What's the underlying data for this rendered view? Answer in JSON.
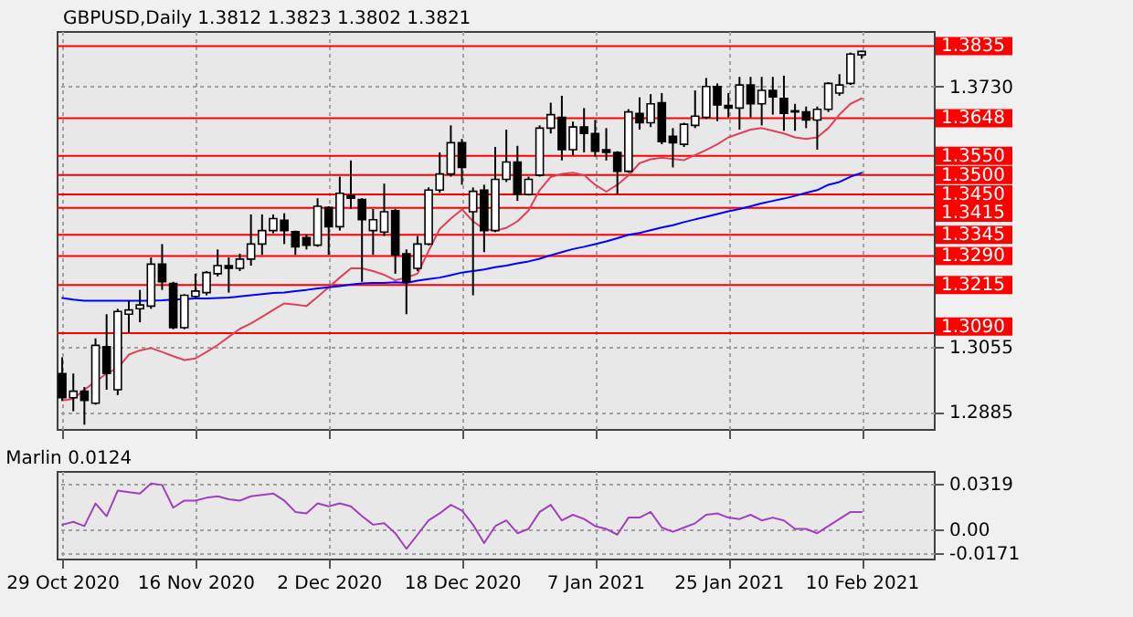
{
  "chart_data": [
    {
      "type": "candlestick",
      "title": "GBPUSD,Daily 1.3812 1.3823 1.3802 1.3821",
      "categories": [
        null,
        null,
        null,
        null,
        null,
        null,
        null,
        null,
        null,
        null,
        null,
        null,
        null,
        null,
        null,
        null,
        null,
        null,
        null,
        null,
        null,
        null,
        null,
        null,
        null,
        null,
        null,
        null,
        null,
        null,
        null,
        null,
        null,
        null,
        null,
        null,
        null,
        null,
        null,
        null,
        null,
        null,
        null,
        null,
        null,
        null,
        null,
        null,
        null,
        null,
        null,
        null,
        null,
        null,
        null,
        null,
        null,
        null,
        null,
        null,
        null,
        null,
        null,
        null,
        null,
        null,
        null,
        null,
        null,
        null,
        null,
        null,
        null
      ],
      "ohlc": [
        [
          1.2985,
          1.3027,
          1.2915,
          1.2922
        ],
        [
          1.2922,
          1.2985,
          1.2887,
          1.2939
        ],
        [
          1.2939,
          1.295,
          1.2852,
          1.2915
        ],
        [
          1.2908,
          1.3076,
          1.2904,
          1.3058
        ],
        [
          1.3055,
          1.3139,
          1.2943,
          1.2985
        ],
        [
          1.2943,
          1.3153,
          1.2929,
          1.3146
        ],
        [
          1.3139,
          1.3174,
          1.309,
          1.315
        ],
        [
          1.3153,
          1.3202,
          1.3118,
          1.3163
        ],
        [
          1.316,
          1.3286,
          1.3153,
          1.3269
        ],
        [
          1.3269,
          1.3321,
          1.3202,
          1.3223
        ],
        [
          1.3219,
          1.3223,
          1.31,
          1.3104
        ],
        [
          1.3104,
          1.3191,
          1.31,
          1.3188
        ],
        [
          1.3185,
          1.3244,
          1.3181,
          1.3199
        ],
        [
          1.3195,
          1.3251,
          1.3188,
          1.3247
        ],
        [
          1.3244,
          1.3307,
          1.3237,
          1.3265
        ],
        [
          1.3265,
          1.3286,
          1.3195,
          1.3258
        ],
        [
          1.3258,
          1.3296,
          1.3251,
          1.3282
        ],
        [
          1.3282,
          1.3398,
          1.3265,
          1.3321
        ],
        [
          1.3321,
          1.3398,
          1.3293,
          1.3356
        ],
        [
          1.3356,
          1.3398,
          1.3349,
          1.3387
        ],
        [
          1.3383,
          1.3401,
          1.3321,
          1.3356
        ],
        [
          1.3353,
          1.3356,
          1.3293,
          1.3314
        ],
        [
          1.3338,
          1.3346,
          1.3307,
          1.3318
        ],
        [
          1.3318,
          1.344,
          1.3314,
          1.3419
        ],
        [
          1.3416,
          1.3419,
          1.3293,
          1.3366
        ],
        [
          1.3366,
          1.3496,
          1.3356,
          1.3453
        ],
        [
          1.3447,
          1.3538,
          1.3412,
          1.344
        ],
        [
          1.3437,
          1.344,
          1.3223,
          1.3384
        ],
        [
          1.3356,
          1.3412,
          1.3293,
          1.3384
        ],
        [
          1.3352,
          1.3478,
          1.3342,
          1.3405
        ],
        [
          1.3408,
          1.3412,
          1.3244,
          1.3293
        ],
        [
          1.3296,
          1.3307,
          1.3139,
          1.3223
        ],
        [
          1.3258,
          1.3342,
          1.3251,
          1.3321
        ],
        [
          1.3321,
          1.3468,
          1.3318,
          1.3461
        ],
        [
          1.3461,
          1.3559,
          1.3454,
          1.3503
        ],
        [
          1.3503,
          1.3629,
          1.3496,
          1.3584
        ],
        [
          1.3584,
          1.3594,
          1.3475,
          1.352
        ],
        [
          1.3405,
          1.3468,
          1.3188,
          1.3458
        ],
        [
          1.3461,
          1.3475,
          1.33,
          1.3356
        ],
        [
          1.3356,
          1.3573,
          1.3352,
          1.3489
        ],
        [
          1.3489,
          1.3618,
          1.3482,
          1.3534
        ],
        [
          1.3534,
          1.3576,
          1.3433,
          1.345
        ],
        [
          1.345,
          1.3496,
          1.3447,
          1.3489
        ],
        [
          1.35,
          1.3629,
          1.3496,
          1.3622
        ],
        [
          1.3622,
          1.3688,
          1.3608,
          1.3657
        ],
        [
          1.365,
          1.3706,
          1.3538,
          1.3566
        ],
        [
          1.3566,
          1.3639,
          1.3552,
          1.3625
        ],
        [
          1.3625,
          1.3674,
          1.3559,
          1.3608
        ],
        [
          1.3608,
          1.3643,
          1.3548,
          1.3562
        ],
        [
          1.3566,
          1.3622,
          1.3538,
          1.3559
        ],
        [
          1.3559,
          1.3562,
          1.345,
          1.351
        ],
        [
          1.351,
          1.3671,
          1.3506,
          1.3664
        ],
        [
          1.366,
          1.3702,
          1.3618,
          1.3636
        ],
        [
          1.3636,
          1.371,
          1.3625,
          1.3685
        ],
        [
          1.3688,
          1.3713,
          1.358,
          1.3587
        ],
        [
          1.3601,
          1.3622,
          1.352,
          1.3584
        ],
        [
          1.358,
          1.3636,
          1.3573,
          1.3632
        ],
        [
          1.3629,
          1.372,
          1.3622,
          1.3653
        ],
        [
          1.365,
          1.3752,
          1.3646,
          1.373
        ],
        [
          1.373,
          1.3738,
          1.364,
          1.3682
        ],
        [
          1.3681,
          1.3713,
          1.365,
          1.3674
        ],
        [
          1.3674,
          1.3755,
          1.3618,
          1.3734
        ],
        [
          1.3734,
          1.3755,
          1.365,
          1.3685
        ],
        [
          1.3685,
          1.3755,
          1.3629,
          1.372
        ],
        [
          1.372,
          1.3755,
          1.3657,
          1.3703
        ],
        [
          1.3699,
          1.3758,
          1.3615,
          1.366
        ],
        [
          1.3664,
          1.3685,
          1.3615,
          1.3667
        ],
        [
          1.3664,
          1.3678,
          1.3622,
          1.3643
        ],
        [
          1.3643,
          1.3678,
          1.3566,
          1.3671
        ],
        [
          1.3671,
          1.3741,
          1.3664,
          1.3738
        ],
        [
          1.3713,
          1.3762,
          1.3706,
          1.3734
        ],
        [
          1.3738,
          1.3818,
          1.3734,
          1.3814
        ],
        [
          1.3812,
          1.3823,
          1.3802,
          1.3821
        ]
      ],
      "series": [
        {
          "type": "line",
          "color": "#e0405a",
          "values": [
            1.2915,
            1.2919,
            1.2943,
            1.2964,
            1.2985,
            1.2999,
            1.3034,
            1.3045,
            1.3051,
            1.3041,
            1.303,
            1.302,
            1.3024,
            1.3041,
            1.3059,
            1.308,
            1.3101,
            1.3115,
            1.3132,
            1.315,
            1.3167,
            1.3164,
            1.316,
            1.3184,
            1.3209,
            1.3234,
            1.3258,
            1.3258,
            1.3251,
            1.3241,
            1.3227,
            1.3234,
            1.3244,
            1.3303,
            1.336,
            1.3387,
            1.3411,
            1.338,
            1.336,
            1.3356,
            1.3363,
            1.338,
            1.3408,
            1.3461,
            1.3495,
            1.3503,
            1.3506,
            1.35,
            1.3475,
            1.3457,
            1.3475,
            1.3499,
            1.3531,
            1.3541,
            1.3545,
            1.3542,
            1.3539,
            1.3552,
            1.3565,
            1.358,
            1.3598,
            1.3608,
            1.3618,
            1.3622,
            1.3615,
            1.3608,
            1.3598,
            1.3594,
            1.3598,
            1.3622,
            1.3657,
            1.3685,
            1.3699
          ]
        },
        {
          "type": "line",
          "color": "#0000ff",
          "values": [
            1.3181,
            1.3177,
            1.3174,
            1.3174,
            1.3174,
            1.3174,
            1.3174,
            1.3174,
            1.3174,
            1.3175,
            1.3177,
            1.3178,
            1.318,
            1.318,
            1.3181,
            1.3182,
            1.3185,
            1.3188,
            1.3191,
            1.3194,
            1.3195,
            1.3199,
            1.3202,
            1.3206,
            1.3209,
            1.3212,
            1.3216,
            1.3219,
            1.322,
            1.322,
            1.3222,
            1.322,
            1.3226,
            1.323,
            1.3234,
            1.324,
            1.3247,
            1.3251,
            1.3255,
            1.3261,
            1.3265,
            1.3271,
            1.3276,
            1.3283,
            1.3292,
            1.33,
            1.3308,
            1.3314,
            1.3321,
            1.3328,
            1.3336,
            1.3345,
            1.335,
            1.3357,
            1.3364,
            1.337,
            1.3378,
            1.3385,
            1.3392,
            1.3399,
            1.3406,
            1.3412,
            1.3419,
            1.3427,
            1.3433,
            1.3439,
            1.3446,
            1.3454,
            1.3461,
            1.3475,
            1.3482,
            1.3496,
            1.3506
          ]
        }
      ],
      "ylim": [
        1.2841,
        1.3874
      ],
      "yticks": [
        1.2885,
        1.3055,
        {
          "value": 1.373,
          "label": "1.3730"
        }
      ],
      "ref_lines": [
        {
          "axis": "y",
          "value": 1.3835,
          "label": "1.3835",
          "color": "#ff0000"
        },
        {
          "axis": "y",
          "value": 1.3648,
          "label": "1.3648",
          "color": "#ff0000"
        },
        {
          "axis": "y",
          "value": 1.355,
          "label": "1.3550",
          "color": "#ff0000"
        },
        {
          "axis": "y",
          "value": 1.35,
          "label": "1.3500",
          "color": "#ff0000"
        },
        {
          "axis": "y",
          "value": 1.345,
          "label": "1.3450",
          "color": "#ff0000"
        },
        {
          "axis": "y",
          "value": 1.3415,
          "label": "1.3415",
          "color": "#ff0000"
        },
        {
          "axis": "y",
          "value": 1.3345,
          "label": "1.3345",
          "color": "#ff0000"
        },
        {
          "axis": "y",
          "value": 1.329,
          "label": "1.3290",
          "color": "#ff0000"
        },
        {
          "axis": "y",
          "value": 1.3215,
          "label": "1.3215",
          "color": "#ff0000"
        },
        {
          "axis": "y",
          "value": 1.309,
          "label": "1.3090",
          "color": "#ff0000"
        }
      ],
      "grid": true,
      "tick_labels": "y"
    },
    {
      "type": "line",
      "title": "Marlin 0.0124",
      "categories": [
        "29 Oct 2020",
        null,
        null,
        null,
        null,
        null,
        null,
        null,
        null,
        null,
        null,
        null,
        "16 Nov 2020",
        null,
        null,
        null,
        null,
        null,
        null,
        null,
        null,
        null,
        null,
        null,
        "2 Dec 2020",
        null,
        null,
        null,
        null,
        null,
        null,
        null,
        null,
        null,
        null,
        null,
        "18 Dec 2020",
        null,
        null,
        null,
        null,
        null,
        null,
        null,
        null,
        null,
        null,
        null,
        "7 Jan 2021",
        null,
        null,
        null,
        null,
        null,
        null,
        null,
        null,
        null,
        null,
        null,
        "25 Jan 2021",
        null,
        null,
        null,
        null,
        null,
        null,
        null,
        null,
        null,
        null,
        null,
        "10 Feb 2021"
      ],
      "series": [
        {
          "color": "#a040c0",
          "values": [
            0.003,
            0.005,
            0.002,
            0.018,
            0.009,
            0.027,
            0.026,
            0.025,
            0.032,
            0.031,
            0.015,
            0.02,
            0.02,
            0.022,
            0.023,
            0.021,
            0.02,
            0.023,
            0.024,
            0.025,
            0.02,
            0.012,
            0.011,
            0.018,
            0.016,
            0.018,
            0.016,
            0.009,
            0.003,
            0.004,
            -0.003,
            -0.014,
            -0.004,
            0.006,
            0.011,
            0.017,
            0.013,
            0.003,
            -0.01,
            0.002,
            0.006,
            -0.003,
            0.0,
            0.012,
            0.017,
            0.006,
            0.01,
            0.007,
            0.002,
            0.0,
            -0.004,
            0.008,
            0.008,
            0.012,
            0.001,
            -0.002,
            0.001,
            0.004,
            0.01,
            0.011,
            0.008,
            0.007,
            0.01,
            0.006,
            0.008,
            0.006,
            0.0,
            0.0,
            -0.003,
            0.002,
            0.007,
            0.012,
            0.012
          ]
        }
      ],
      "ylim": [
        -0.0209,
        0.0409
      ],
      "yticks": [
        -0.0171,
        {
          "value": 0,
          "label": "0.00"
        },
        0.0319
      ],
      "grid": true
    }
  ]
}
